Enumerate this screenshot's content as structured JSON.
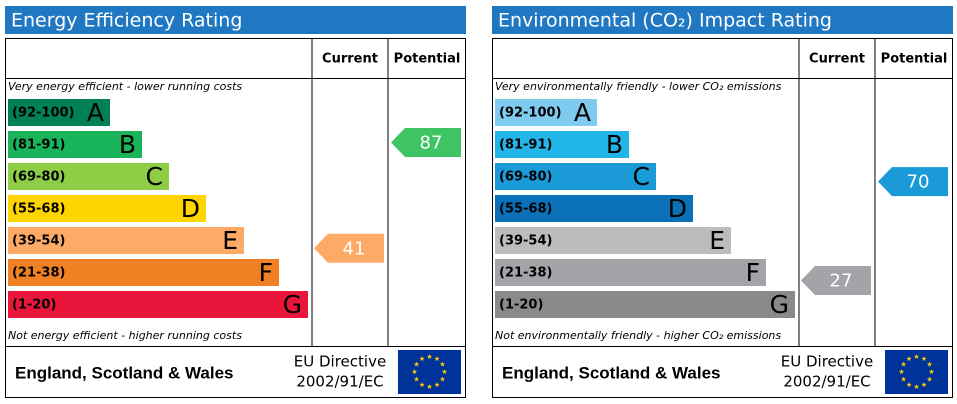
{
  "panels": [
    {
      "title": "Energy Efficiency Rating",
      "columns": [
        "Current",
        "Potential"
      ],
      "top_note": "Very energy efficient - lower running costs",
      "bottom_note": "Not energy efficient - higher running costs",
      "bands": [
        {
          "range": "(92-100)",
          "letter": "A",
          "color": "#008054"
        },
        {
          "range": "(81-91)",
          "letter": "B",
          "color": "#19b459"
        },
        {
          "range": "(69-80)",
          "letter": "C",
          "color": "#8dce46"
        },
        {
          "range": "(55-68)",
          "letter": "D",
          "color": "#ffd500"
        },
        {
          "range": "(39-54)",
          "letter": "E",
          "color": "#fcaa65"
        },
        {
          "range": "(21-38)",
          "letter": "F",
          "color": "#ef8023"
        },
        {
          "range": "(1-20)",
          "letter": "G",
          "color": "#e9153b"
        }
      ],
      "current": {
        "value": 41,
        "color": "#fcaa65"
      },
      "potential": {
        "value": 87,
        "color": "#3fc463"
      },
      "footer": {
        "region": "England, Scotland & Wales",
        "directive": [
          "EU Directive",
          "2002/91/EC"
        ]
      }
    },
    {
      "title": "Environmental (CO₂) Impact Rating",
      "columns": [
        "Current",
        "Potential"
      ],
      "top_note": "Very environmentally friendly - lower CO₂ emissions",
      "bottom_note": "Not environmentally friendly - higher CO₂ emissions",
      "bands": [
        {
          "range": "(92-100)",
          "letter": "A",
          "color": "#7fcbef"
        },
        {
          "range": "(81-91)",
          "letter": "B",
          "color": "#22b5e8"
        },
        {
          "range": "(69-80)",
          "letter": "C",
          "color": "#1a9ad6"
        },
        {
          "range": "(55-68)",
          "letter": "D",
          "color": "#0a71b8"
        },
        {
          "range": "(39-54)",
          "letter": "E",
          "color": "#bbbcbe"
        },
        {
          "range": "(21-38)",
          "letter": "F",
          "color": "#a3a4a7"
        },
        {
          "range": "(1-20)",
          "letter": "G",
          "color": "#898a8c"
        }
      ],
      "current": {
        "value": 27,
        "color": "#a3a4a7"
      },
      "potential": {
        "value": 70,
        "color": "#1a9ad6"
      },
      "footer": {
        "region": "England, Scotland & Wales",
        "directive": [
          "EU Directive",
          "2002/91/EC"
        ]
      }
    }
  ]
}
